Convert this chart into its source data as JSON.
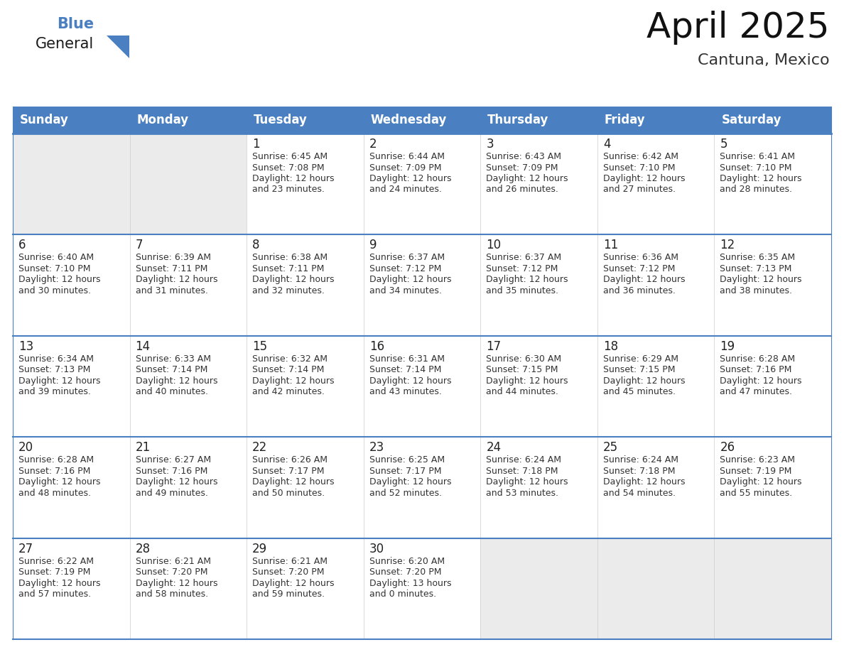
{
  "title": "April 2025",
  "subtitle": "Cantuna, Mexico",
  "header_color": "#4a7fc1",
  "header_text_color": "#FFFFFF",
  "border_color": "#4a7fc1",
  "text_color": "#333333",
  "day_number_color": "#222222",
  "empty_cell_color": "#EBEBEB",
  "filled_cell_color": "#FFFFFF",
  "days_of_week": [
    "Sunday",
    "Monday",
    "Tuesday",
    "Wednesday",
    "Thursday",
    "Friday",
    "Saturday"
  ],
  "weeks": [
    [
      {
        "day": "",
        "info": ""
      },
      {
        "day": "",
        "info": ""
      },
      {
        "day": "1",
        "info": "Sunrise: 6:45 AM\nSunset: 7:08 PM\nDaylight: 12 hours\nand 23 minutes."
      },
      {
        "day": "2",
        "info": "Sunrise: 6:44 AM\nSunset: 7:09 PM\nDaylight: 12 hours\nand 24 minutes."
      },
      {
        "day": "3",
        "info": "Sunrise: 6:43 AM\nSunset: 7:09 PM\nDaylight: 12 hours\nand 26 minutes."
      },
      {
        "day": "4",
        "info": "Sunrise: 6:42 AM\nSunset: 7:10 PM\nDaylight: 12 hours\nand 27 minutes."
      },
      {
        "day": "5",
        "info": "Sunrise: 6:41 AM\nSunset: 7:10 PM\nDaylight: 12 hours\nand 28 minutes."
      }
    ],
    [
      {
        "day": "6",
        "info": "Sunrise: 6:40 AM\nSunset: 7:10 PM\nDaylight: 12 hours\nand 30 minutes."
      },
      {
        "day": "7",
        "info": "Sunrise: 6:39 AM\nSunset: 7:11 PM\nDaylight: 12 hours\nand 31 minutes."
      },
      {
        "day": "8",
        "info": "Sunrise: 6:38 AM\nSunset: 7:11 PM\nDaylight: 12 hours\nand 32 minutes."
      },
      {
        "day": "9",
        "info": "Sunrise: 6:37 AM\nSunset: 7:12 PM\nDaylight: 12 hours\nand 34 minutes."
      },
      {
        "day": "10",
        "info": "Sunrise: 6:37 AM\nSunset: 7:12 PM\nDaylight: 12 hours\nand 35 minutes."
      },
      {
        "day": "11",
        "info": "Sunrise: 6:36 AM\nSunset: 7:12 PM\nDaylight: 12 hours\nand 36 minutes."
      },
      {
        "day": "12",
        "info": "Sunrise: 6:35 AM\nSunset: 7:13 PM\nDaylight: 12 hours\nand 38 minutes."
      }
    ],
    [
      {
        "day": "13",
        "info": "Sunrise: 6:34 AM\nSunset: 7:13 PM\nDaylight: 12 hours\nand 39 minutes."
      },
      {
        "day": "14",
        "info": "Sunrise: 6:33 AM\nSunset: 7:14 PM\nDaylight: 12 hours\nand 40 minutes."
      },
      {
        "day": "15",
        "info": "Sunrise: 6:32 AM\nSunset: 7:14 PM\nDaylight: 12 hours\nand 42 minutes."
      },
      {
        "day": "16",
        "info": "Sunrise: 6:31 AM\nSunset: 7:14 PM\nDaylight: 12 hours\nand 43 minutes."
      },
      {
        "day": "17",
        "info": "Sunrise: 6:30 AM\nSunset: 7:15 PM\nDaylight: 12 hours\nand 44 minutes."
      },
      {
        "day": "18",
        "info": "Sunrise: 6:29 AM\nSunset: 7:15 PM\nDaylight: 12 hours\nand 45 minutes."
      },
      {
        "day": "19",
        "info": "Sunrise: 6:28 AM\nSunset: 7:16 PM\nDaylight: 12 hours\nand 47 minutes."
      }
    ],
    [
      {
        "day": "20",
        "info": "Sunrise: 6:28 AM\nSunset: 7:16 PM\nDaylight: 12 hours\nand 48 minutes."
      },
      {
        "day": "21",
        "info": "Sunrise: 6:27 AM\nSunset: 7:16 PM\nDaylight: 12 hours\nand 49 minutes."
      },
      {
        "day": "22",
        "info": "Sunrise: 6:26 AM\nSunset: 7:17 PM\nDaylight: 12 hours\nand 50 minutes."
      },
      {
        "day": "23",
        "info": "Sunrise: 6:25 AM\nSunset: 7:17 PM\nDaylight: 12 hours\nand 52 minutes."
      },
      {
        "day": "24",
        "info": "Sunrise: 6:24 AM\nSunset: 7:18 PM\nDaylight: 12 hours\nand 53 minutes."
      },
      {
        "day": "25",
        "info": "Sunrise: 6:24 AM\nSunset: 7:18 PM\nDaylight: 12 hours\nand 54 minutes."
      },
      {
        "day": "26",
        "info": "Sunrise: 6:23 AM\nSunset: 7:19 PM\nDaylight: 12 hours\nand 55 minutes."
      }
    ],
    [
      {
        "day": "27",
        "info": "Sunrise: 6:22 AM\nSunset: 7:19 PM\nDaylight: 12 hours\nand 57 minutes."
      },
      {
        "day": "28",
        "info": "Sunrise: 6:21 AM\nSunset: 7:20 PM\nDaylight: 12 hours\nand 58 minutes."
      },
      {
        "day": "29",
        "info": "Sunrise: 6:21 AM\nSunset: 7:20 PM\nDaylight: 12 hours\nand 59 minutes."
      },
      {
        "day": "30",
        "info": "Sunrise: 6:20 AM\nSunset: 7:20 PM\nDaylight: 13 hours\nand 0 minutes."
      },
      {
        "day": "",
        "info": ""
      },
      {
        "day": "",
        "info": ""
      },
      {
        "day": "",
        "info": ""
      }
    ]
  ],
  "logo_general_color": "#1a1a1a",
  "logo_blue_color": "#4a7fc1",
  "logo_triangle_color": "#4a7fc1",
  "title_fontsize": 36,
  "subtitle_fontsize": 16,
  "header_fontsize": 12,
  "day_number_fontsize": 12,
  "info_fontsize": 9
}
